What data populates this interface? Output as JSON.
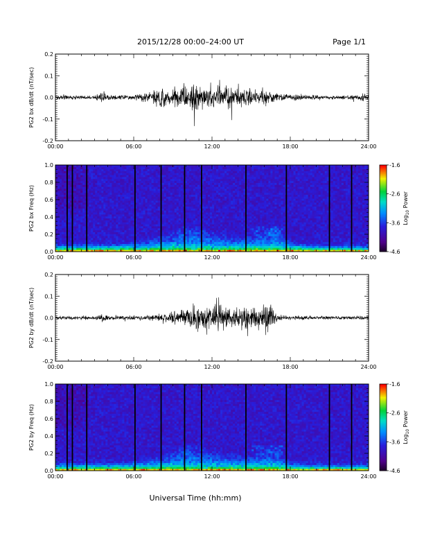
{
  "header": {
    "title": "2015/12/28  00:00–24:00 UT",
    "page": "Page 1/1"
  },
  "xlabel": "Universal Time (hh:mm)",
  "chart_data": [
    {
      "type": "line",
      "ylabel": "PG2 bx dB/dt (nT/sec)",
      "xlim": [
        "00:00",
        "24:00"
      ],
      "xticks": [
        "00:00",
        "06:00",
        "12:00",
        "18:00",
        "24:00"
      ],
      "ylim": [
        -0.2,
        0.2
      ],
      "yticks": [
        "-0.2",
        "-0.1",
        "0.0",
        "0.1",
        "0.2"
      ],
      "envelope": {
        "hours": [
          0,
          1,
          2,
          3,
          3.7,
          4,
          5,
          6,
          7,
          8,
          9,
          10,
          10.5,
          11,
          11.5,
          12,
          13,
          14,
          15,
          16,
          17,
          18,
          19,
          20,
          21,
          22,
          23,
          23.7,
          24
        ],
        "amplitude": [
          0.012,
          0.015,
          0.014,
          0.013,
          0.04,
          0.02,
          0.016,
          0.018,
          0.03,
          0.06,
          0.07,
          0.085,
          0.11,
          0.1,
          0.09,
          0.07,
          0.075,
          0.07,
          0.065,
          0.05,
          0.03,
          0.02,
          0.018,
          0.016,
          0.014,
          0.014,
          0.013,
          0.03,
          0.02
        ]
      }
    },
    {
      "type": "heatmap",
      "ylabel": "PG2 bx Freq (Hz)",
      "xlim": [
        "00:00",
        "24:00"
      ],
      "xticks": [
        "00:00",
        "06:00",
        "12:00",
        "18:00",
        "24:00"
      ],
      "ylim": [
        0.0,
        1.0
      ],
      "yticks": [
        "0.0",
        "0.2",
        "0.4",
        "0.6",
        "0.8",
        "1.0"
      ],
      "colorbar": {
        "label": "Log10 Power",
        "min": -4.6,
        "max": -1.6,
        "ticks": [
          "-1.6",
          "-2.6",
          "-3.6",
          "-4.6"
        ]
      },
      "gaps_hours": [
        0.9,
        1.3,
        2.4,
        6.1,
        8.1,
        9.9,
        11.2,
        14.6,
        17.7,
        21.0,
        22.7
      ],
      "activity": {
        "hours": [
          0,
          2,
          4,
          6,
          7,
          8,
          9,
          10,
          11,
          12,
          13,
          14,
          15,
          16,
          17,
          18,
          20,
          22,
          24
        ],
        "height": [
          0.08,
          0.1,
          0.09,
          0.12,
          0.15,
          0.2,
          0.25,
          0.35,
          0.33,
          0.25,
          0.22,
          0.2,
          0.2,
          0.28,
          0.3,
          0.12,
          0.08,
          0.07,
          0.06
        ]
      }
    },
    {
      "type": "line",
      "ylabel": "PG2 by dB/dt (nT/sec)",
      "xlim": [
        "00:00",
        "24:00"
      ],
      "xticks": [
        "00:00",
        "06:00",
        "12:00",
        "18:00",
        "24:00"
      ],
      "ylim": [
        -0.2,
        0.2
      ],
      "yticks": [
        "-0.2",
        "-0.1",
        "0.0",
        "0.1",
        "0.2"
      ],
      "envelope": {
        "hours": [
          0,
          1,
          2,
          3,
          3.7,
          4,
          5,
          6,
          7,
          8,
          9,
          10,
          10.5,
          11,
          11.5,
          12,
          12.5,
          13,
          14,
          15,
          16,
          16.5,
          17,
          18,
          19,
          20,
          21,
          22,
          23,
          24
        ],
        "amplitude": [
          0.01,
          0.012,
          0.012,
          0.012,
          0.03,
          0.015,
          0.012,
          0.014,
          0.018,
          0.025,
          0.035,
          0.06,
          0.08,
          0.075,
          0.07,
          0.09,
          0.12,
          0.07,
          0.06,
          0.07,
          0.09,
          0.11,
          0.02,
          0.014,
          0.012,
          0.012,
          0.012,
          0.012,
          0.012,
          0.012
        ]
      }
    },
    {
      "type": "heatmap",
      "ylabel": "PG2 by Freq (Hz)",
      "xlim": [
        "00:00",
        "24:00"
      ],
      "xticks": [
        "00:00",
        "06:00",
        "12:00",
        "18:00",
        "24:00"
      ],
      "ylim": [
        0.0,
        1.0
      ],
      "yticks": [
        "0.0",
        "0.2",
        "0.4",
        "0.6",
        "0.8",
        "1.0"
      ],
      "colorbar": {
        "label": "Log10 Power",
        "min": -4.6,
        "max": -1.6,
        "ticks": [
          "-1.6",
          "-2.6",
          "-3.6",
          "-4.6"
        ]
      },
      "gaps_hours": [
        0.9,
        1.3,
        2.4,
        6.1,
        8.1,
        9.9,
        11.2,
        14.6,
        17.7,
        21.0,
        22.7
      ],
      "activity": {
        "hours": [
          0,
          2,
          4,
          6,
          7,
          8,
          9,
          10,
          11,
          12,
          13,
          14,
          15,
          16,
          17,
          18,
          20,
          22,
          24
        ],
        "height": [
          0.09,
          0.1,
          0.09,
          0.12,
          0.15,
          0.2,
          0.25,
          0.35,
          0.3,
          0.25,
          0.22,
          0.2,
          0.2,
          0.25,
          0.25,
          0.1,
          0.07,
          0.07,
          0.06
        ]
      }
    }
  ]
}
